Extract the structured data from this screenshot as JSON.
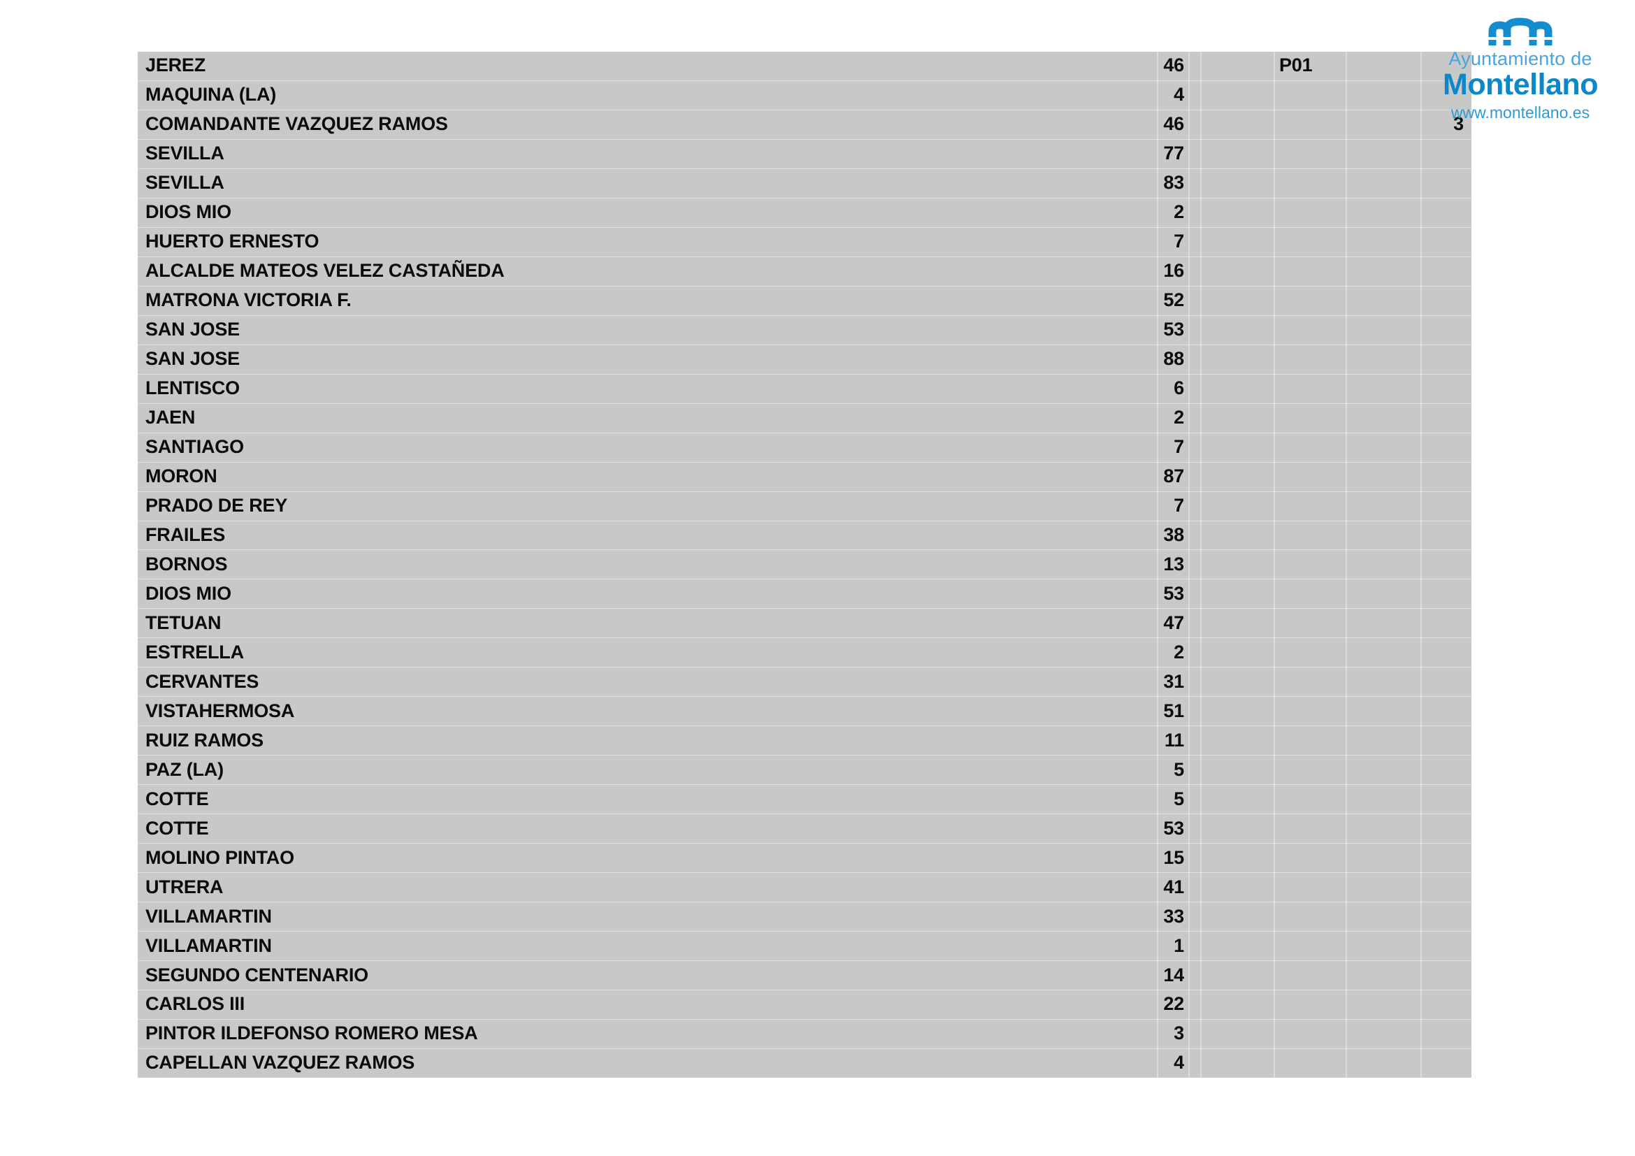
{
  "header_logo": {
    "icon": "arches-bridge-icon",
    "org_prefix": "Ayuntamiento de",
    "org_name": "Montellano",
    "website": "www.montellano.es",
    "colors": {
      "org_prefix_blue": "#46A5DB",
      "org_name_blue": "#0C87C8",
      "website_blue": "#2D9AD3",
      "icon_blue": "#148DCE"
    }
  },
  "table": {
    "background_gray": "#C8C8C8",
    "text_color": "#0B0B0B",
    "page_code": "P01",
    "rows": [
      {
        "name": "JEREZ",
        "count": "46",
        "code": "P01",
        "extra": ""
      },
      {
        "name": "MAQUINA (LA)",
        "count": "4",
        "code": "",
        "extra": ""
      },
      {
        "name": "COMANDANTE VAZQUEZ RAMOS",
        "count": "46",
        "code": "",
        "extra": "3"
      },
      {
        "name": "SEVILLA",
        "count": "77",
        "code": "",
        "extra": ""
      },
      {
        "name": "SEVILLA",
        "count": "83",
        "code": "",
        "extra": ""
      },
      {
        "name": "DIOS MIO",
        "count": "2",
        "code": "",
        "extra": ""
      },
      {
        "name": "HUERTO ERNESTO",
        "count": "7",
        "code": "",
        "extra": ""
      },
      {
        "name": "ALCALDE MATEOS VELEZ CASTAÑEDA",
        "count": "16",
        "code": "",
        "extra": ""
      },
      {
        "name": "MATRONA VICTORIA F.",
        "count": "52",
        "code": "",
        "extra": ""
      },
      {
        "name": "SAN JOSE",
        "count": "53",
        "code": "",
        "extra": ""
      },
      {
        "name": "SAN JOSE",
        "count": "88",
        "code": "",
        "extra": ""
      },
      {
        "name": "LENTISCO",
        "count": "6",
        "code": "",
        "extra": ""
      },
      {
        "name": "JAEN",
        "count": "2",
        "code": "",
        "extra": ""
      },
      {
        "name": "SANTIAGO",
        "count": "7",
        "code": "",
        "extra": ""
      },
      {
        "name": "MORON",
        "count": "87",
        "code": "",
        "extra": ""
      },
      {
        "name": "PRADO DE REY",
        "count": "7",
        "code": "",
        "extra": ""
      },
      {
        "name": "FRAILES",
        "count": "38",
        "code": "",
        "extra": ""
      },
      {
        "name": "BORNOS",
        "count": "13",
        "code": "",
        "extra": ""
      },
      {
        "name": "DIOS MIO",
        "count": "53",
        "code": "",
        "extra": ""
      },
      {
        "name": "TETUAN",
        "count": "47",
        "code": "",
        "extra": ""
      },
      {
        "name": "ESTRELLA",
        "count": "2",
        "code": "",
        "extra": ""
      },
      {
        "name": "CERVANTES",
        "count": "31",
        "code": "",
        "extra": ""
      },
      {
        "name": "VISTAHERMOSA",
        "count": "51",
        "code": "",
        "extra": ""
      },
      {
        "name": "RUIZ RAMOS",
        "count": "11",
        "code": "",
        "extra": ""
      },
      {
        "name": "PAZ (LA)",
        "count": "5",
        "code": "",
        "extra": ""
      },
      {
        "name": "COTTE",
        "count": "5",
        "code": "",
        "extra": ""
      },
      {
        "name": "COTTE",
        "count": "53",
        "code": "",
        "extra": ""
      },
      {
        "name": "MOLINO PINTAO",
        "count": "15",
        "code": "",
        "extra": ""
      },
      {
        "name": "UTRERA",
        "count": "41",
        "code": "",
        "extra": ""
      },
      {
        "name": "VILLAMARTIN",
        "count": "33",
        "code": "",
        "extra": ""
      },
      {
        "name": "VILLAMARTIN",
        "count": "1",
        "code": "",
        "extra": ""
      },
      {
        "name": "SEGUNDO CENTENARIO",
        "count": "14",
        "code": "",
        "extra": ""
      },
      {
        "name": "CARLOS III",
        "count": "22",
        "code": "",
        "extra": ""
      },
      {
        "name": "PINTOR ILDEFONSO ROMERO MESA",
        "count": "3",
        "code": "",
        "extra": ""
      },
      {
        "name": "CAPELLAN VAZQUEZ RAMOS",
        "count": "4",
        "code": "",
        "extra": ""
      }
    ]
  }
}
